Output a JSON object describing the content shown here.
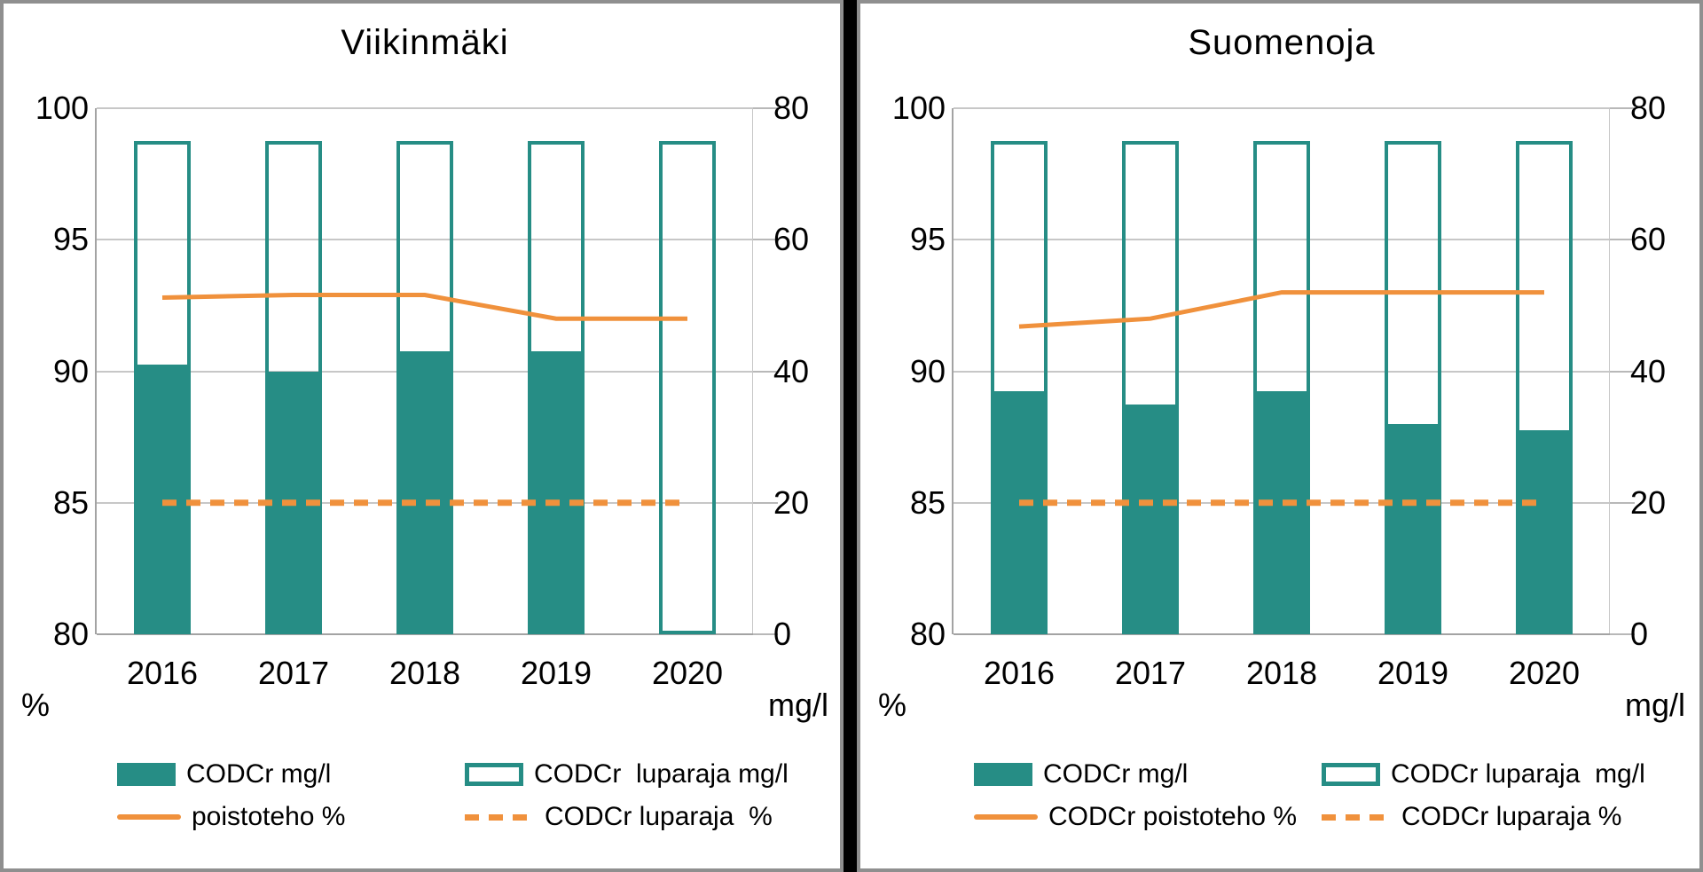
{
  "colors": {
    "teal": "#268D85",
    "orange": "#F0913C",
    "gridline": "#C7C7C7",
    "axis_line": "#A3A3A3",
    "panel_border": "#8F8F8F",
    "background": "#000000",
    "text": "#000000"
  },
  "chart_data": [
    {
      "type": "bar+line combo",
      "title": "Viikinmäki",
      "grid": true,
      "legend_position": "bottom",
      "categories": [
        "2016",
        "2017",
        "2018",
        "2019",
        "2020"
      ],
      "left_axis": {
        "label": "%",
        "min": 80,
        "max": 100,
        "ticks": [
          100,
          95,
          90,
          85,
          80
        ]
      },
      "right_axis": {
        "label": "mg/l",
        "min": 0,
        "max": 80,
        "ticks": [
          80,
          60,
          40,
          20,
          0
        ]
      },
      "series": [
        {
          "name": "CODCr mg/l",
          "type": "bar",
          "style": "filled",
          "axis": "right",
          "values": [
            41,
            40,
            43,
            43,
            null
          ]
        },
        {
          "name": "CODCr  luparaja mg/l",
          "type": "bar",
          "style": "outline",
          "axis": "right",
          "values": [
            75,
            75,
            75,
            75,
            75
          ]
        },
        {
          "name": "poistoteho %",
          "type": "line",
          "style": "solid",
          "axis": "left",
          "values": [
            92.8,
            92.9,
            92.9,
            92,
            92
          ]
        },
        {
          "name": "CODCr luparaja  %",
          "type": "line",
          "style": "dashed",
          "axis": "left",
          "values": [
            85,
            85,
            85,
            85,
            85
          ]
        }
      ]
    },
    {
      "type": "bar+line combo",
      "title": "Suomenoja",
      "grid": true,
      "legend_position": "bottom",
      "categories": [
        "2016",
        "2017",
        "2018",
        "2019",
        "2020"
      ],
      "left_axis": {
        "label": "%",
        "min": 80,
        "max": 100,
        "ticks": [
          100,
          95,
          90,
          85,
          80
        ]
      },
      "right_axis": {
        "label": "mg/l",
        "min": 0,
        "max": 80,
        "ticks": [
          80,
          60,
          40,
          20,
          0
        ]
      },
      "series": [
        {
          "name": "CODCr mg/l",
          "type": "bar",
          "style": "filled",
          "axis": "right",
          "values": [
            37,
            35,
            37,
            32,
            31
          ]
        },
        {
          "name": "CODCr luparaja  mg/l",
          "type": "bar",
          "style": "outline",
          "axis": "right",
          "values": [
            75,
            75,
            75,
            75,
            75
          ]
        },
        {
          "name": "CODCr poistoteho %",
          "type": "line",
          "style": "solid",
          "axis": "left",
          "values": [
            91.7,
            92,
            93,
            93,
            93
          ]
        },
        {
          "name": "CODCr luparaja %",
          "type": "line",
          "style": "dashed",
          "axis": "left",
          "values": [
            85,
            85,
            85,
            85,
            85
          ]
        }
      ]
    }
  ]
}
